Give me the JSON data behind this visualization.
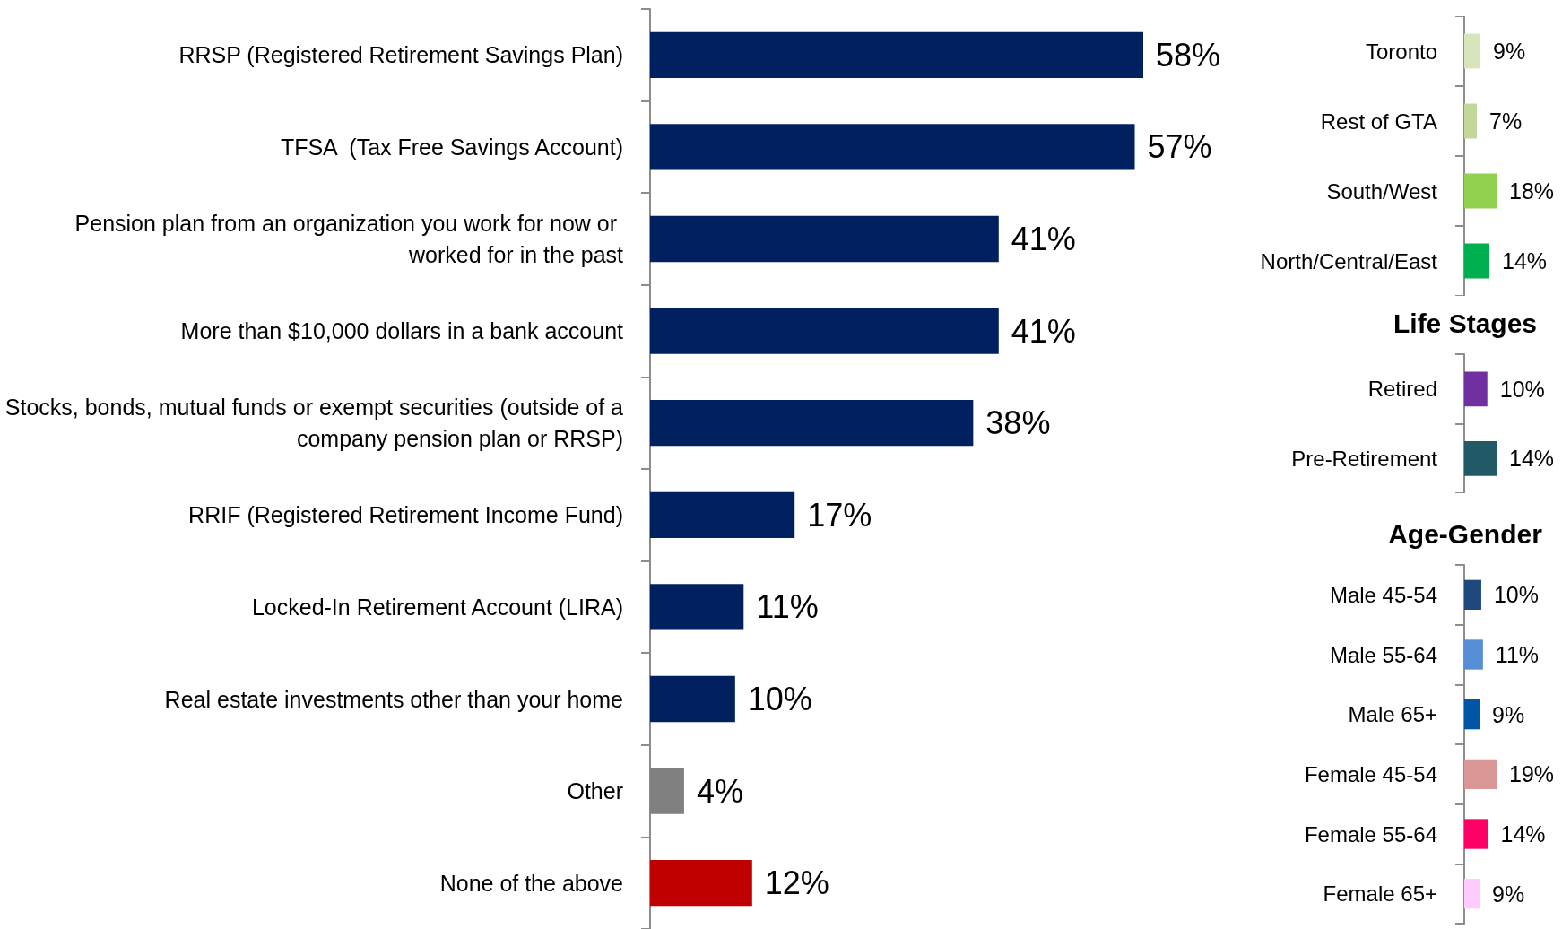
{
  "chart_data": [
    {
      "type": "bar",
      "orientation": "horizontal",
      "tick_labels": "y",
      "categories": [
        "RRSP (Registered Retirement Savings Plan)",
        "TFSA  (Tax Free Savings Account)",
        "Pension plan from an organization you work for now or worked for in the past",
        "More than $10,000 dollars in a bank account",
        "Stocks, bonds, mutual funds or exempt securities (outside of a company pension plan or RRSP)",
        "RRIF (Registered Retirement Income Fund)",
        "Locked-In Retirement Account (LIRA)",
        "Real estate investments other than your home",
        "Other",
        "None of the above"
      ],
      "values": [
        58,
        57,
        41,
        41,
        38,
        17,
        11,
        10,
        4,
        12
      ],
      "value_labels": [
        "58%",
        "57%",
        "41%",
        "41%",
        "38%",
        "17%",
        "11%",
        "10%",
        "4%",
        "12%"
      ],
      "colors": [
        "#002060",
        "#002060",
        "#002060",
        "#002060",
        "#002060",
        "#002060",
        "#002060",
        "#002060",
        "#808080",
        "#c00000"
      ]
    },
    {
      "type": "bar",
      "orientation": "horizontal",
      "tick_labels": "y",
      "categories": [
        "Toronto",
        "Rest of GTA",
        "South/West",
        "North/Central/East"
      ],
      "values": [
        9,
        7,
        18,
        14
      ],
      "value_labels": [
        "9%",
        "7%",
        "18%",
        "14%"
      ],
      "colors": [
        "#d8e4bc",
        "#c4d79b",
        "#92d050",
        "#00b050"
      ]
    },
    {
      "type": "bar",
      "orientation": "horizontal",
      "tick_labels": "y",
      "title": "Life Stages",
      "categories": [
        "Retired",
        "Pre-Retirement"
      ],
      "values": [
        10,
        14
      ],
      "value_labels": [
        "10%",
        "14%"
      ],
      "colors": [
        "#7030a0",
        "#215967"
      ]
    },
    {
      "type": "bar",
      "orientation": "horizontal",
      "tick_labels": "y",
      "title": "Age-Gender",
      "categories": [
        "Male 45-54",
        "Male 55-64",
        "Male 65+",
        "Female 45-54",
        "Female 55-64",
        "Female 65+"
      ],
      "values": [
        10,
        11,
        9,
        19,
        14,
        9
      ],
      "value_labels": [
        "10%",
        "11%",
        "9%",
        "19%",
        "14%",
        "9%"
      ],
      "colors": [
        "#1f497d",
        "#558ed5",
        "#0055a5",
        "#da9694",
        "#ff0066",
        "#ffccff"
      ]
    }
  ]
}
